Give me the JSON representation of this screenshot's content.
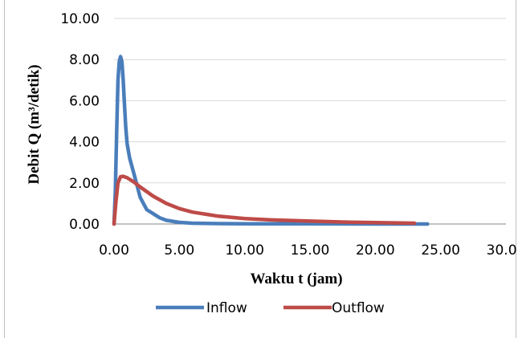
{
  "chart_data": {
    "type": "line",
    "title": "",
    "xlabel": "Waktu t (jam)",
    "ylabel": "Debit Q (m³/detik)",
    "xlim": [
      0,
      30
    ],
    "ylim": [
      0,
      10
    ],
    "x_ticks": [
      "0.00",
      "5.00",
      "10.00",
      "15.00",
      "20.00",
      "25.00",
      "30.00"
    ],
    "y_ticks": [
      "0.00",
      "2.00",
      "4.00",
      "6.00",
      "8.00",
      "10.00"
    ],
    "grid": "horizontal",
    "legend_position": "bottom",
    "series": [
      {
        "name": "Inflow",
        "color": "#4a7ebb",
        "points": [
          [
            0,
            0
          ],
          [
            0.1,
            1.6
          ],
          [
            0.2,
            4.5
          ],
          [
            0.3,
            7.0
          ],
          [
            0.4,
            7.9
          ],
          [
            0.5,
            8.15
          ],
          [
            0.6,
            7.9
          ],
          [
            0.7,
            7.0
          ],
          [
            0.8,
            5.8
          ],
          [
            0.9,
            4.7
          ],
          [
            1.0,
            3.9
          ],
          [
            1.2,
            3.2
          ],
          [
            1.5,
            2.5
          ],
          [
            2.0,
            1.3
          ],
          [
            2.5,
            0.7
          ],
          [
            3.0,
            0.5
          ],
          [
            3.5,
            0.3
          ],
          [
            4.0,
            0.18
          ],
          [
            5.0,
            0.08
          ],
          [
            6.0,
            0.04
          ],
          [
            8.0,
            0.02
          ],
          [
            10.0,
            0.01
          ],
          [
            15.0,
            0.01
          ],
          [
            20.0,
            0.0
          ],
          [
            24.0,
            0.0
          ]
        ]
      },
      {
        "name": "Outflow",
        "color": "#be4b48",
        "points": [
          [
            0,
            0
          ],
          [
            0.15,
            1.1
          ],
          [
            0.3,
            2.0
          ],
          [
            0.5,
            2.3
          ],
          [
            0.7,
            2.32
          ],
          [
            1.0,
            2.25
          ],
          [
            1.5,
            2.05
          ],
          [
            2.0,
            1.8
          ],
          [
            3.0,
            1.35
          ],
          [
            4.0,
            1.0
          ],
          [
            5.0,
            0.75
          ],
          [
            6.0,
            0.58
          ],
          [
            8.0,
            0.38
          ],
          [
            10.0,
            0.26
          ],
          [
            12.0,
            0.2
          ],
          [
            15.0,
            0.14
          ],
          [
            18.0,
            0.09
          ],
          [
            20.0,
            0.07
          ],
          [
            23.0,
            0.04
          ]
        ]
      }
    ]
  }
}
